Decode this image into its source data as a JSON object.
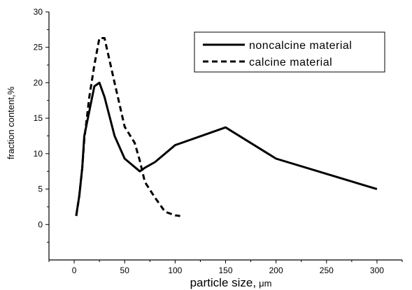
{
  "chart_data": {
    "type": "line",
    "xlabel": "particle size,",
    "xlabel_unit": "μm",
    "ylabel": "fraction content,%",
    "xlim": [
      -25,
      325
    ],
    "ylim": [
      -5,
      30
    ],
    "x_ticks": [
      0,
      50,
      100,
      150,
      200,
      250,
      300
    ],
    "y_ticks": [
      0,
      5,
      10,
      15,
      20,
      25,
      30
    ],
    "grid": false,
    "legend_position": "top-right",
    "series": [
      {
        "name": "noncalcine material",
        "style": "solid",
        "color": "#000000",
        "x": [
          2,
          5,
          8,
          10,
          15,
          20,
          25,
          30,
          40,
          50,
          65,
          70,
          80,
          100,
          150,
          200,
          300
        ],
        "y": [
          1.3,
          4,
          8,
          12.5,
          16,
          19.5,
          20,
          18,
          12.5,
          9.3,
          7.5,
          8,
          8.8,
          11.2,
          13.7,
          9.3,
          5
        ]
      },
      {
        "name": "calcine material",
        "style": "dashed",
        "color": "#000000",
        "x": [
          2,
          5,
          8,
          10,
          15,
          20,
          25,
          30,
          40,
          50,
          60,
          65,
          70,
          80,
          90,
          100,
          105
        ],
        "y": [
          1.2,
          4,
          8,
          12,
          18,
          22.5,
          26.3,
          26.3,
          20,
          13.8,
          11.5,
          9,
          6,
          3.8,
          1.8,
          1.3,
          1.2
        ]
      }
    ]
  }
}
